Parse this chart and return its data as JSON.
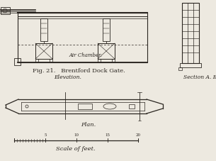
{
  "title": "Fig. 21.   Brentford Dock Gate.",
  "label_elevation": "Elevation.",
  "label_section": "Section A. B.",
  "label_plan": "Plan.",
  "label_scale": "Scale of feet.",
  "bg_color": "#ede9e0",
  "line_color": "#2a2520",
  "fig_width": 3.05,
  "fig_height": 2.27,
  "dpi": 100
}
